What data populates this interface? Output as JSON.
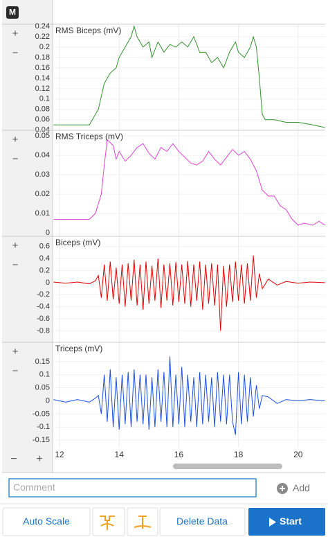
{
  "toolbar": {
    "marker": "M"
  },
  "controls": {
    "zoom_in": "+",
    "zoom_out": "−"
  },
  "chart_data": [
    {
      "type": "line",
      "title": "RMS Biceps (mV)",
      "color": "#2f8f2a",
      "x": [
        11.8,
        12.4,
        13.0,
        13.3,
        13.5,
        13.7,
        13.9,
        14.0,
        14.2,
        14.4,
        14.5,
        14.6,
        14.8,
        15.0,
        15.1,
        15.3,
        15.5,
        15.7,
        15.9,
        16.1,
        16.3,
        16.5,
        16.7,
        16.9,
        17.1,
        17.3,
        17.5,
        17.7,
        17.9,
        18.0,
        18.2,
        18.4,
        18.5,
        18.6,
        18.7,
        18.8,
        18.9,
        19.2,
        19.6,
        20.0,
        20.5,
        20.9
      ],
      "values": [
        0.05,
        0.05,
        0.05,
        0.08,
        0.13,
        0.15,
        0.16,
        0.18,
        0.2,
        0.22,
        0.24,
        0.22,
        0.2,
        0.21,
        0.18,
        0.21,
        0.19,
        0.205,
        0.2,
        0.21,
        0.2,
        0.22,
        0.19,
        0.19,
        0.17,
        0.18,
        0.16,
        0.19,
        0.21,
        0.19,
        0.18,
        0.2,
        0.22,
        0.2,
        0.14,
        0.07,
        0.06,
        0.06,
        0.055,
        0.055,
        0.05,
        0.045
      ],
      "xlim": [
        11.79,
        20.91
      ],
      "xticks": [
        12,
        14,
        16,
        18,
        20
      ],
      "ylim": [
        0.041,
        0.244
      ],
      "yticks": [
        0.24,
        0.22,
        0.2,
        0.18,
        0.16,
        0.14,
        0.12,
        0.1,
        0.08,
        0.06,
        0.04
      ],
      "grid": true
    },
    {
      "type": "line",
      "title": "RMS Triceps (mV)",
      "color": "#e040d2",
      "x": [
        11.8,
        13.0,
        13.2,
        13.4,
        13.5,
        13.6,
        13.8,
        13.9,
        14.0,
        14.2,
        14.4,
        14.6,
        14.8,
        15.0,
        15.2,
        15.4,
        15.6,
        15.8,
        16.0,
        16.2,
        16.4,
        16.6,
        16.8,
        17.0,
        17.2,
        17.4,
        17.6,
        17.8,
        18.0,
        18.2,
        18.4,
        18.6,
        18.8,
        19.0,
        19.2,
        19.4,
        19.6,
        19.8,
        20.0,
        20.2,
        20.5,
        20.7,
        20.9
      ],
      "values": [
        0.007,
        0.007,
        0.01,
        0.02,
        0.035,
        0.048,
        0.045,
        0.038,
        0.042,
        0.037,
        0.04,
        0.044,
        0.046,
        0.041,
        0.038,
        0.044,
        0.042,
        0.046,
        0.042,
        0.039,
        0.036,
        0.035,
        0.037,
        0.042,
        0.038,
        0.035,
        0.039,
        0.043,
        0.04,
        0.042,
        0.038,
        0.032,
        0.022,
        0.019,
        0.019,
        0.014,
        0.012,
        0.007,
        0.004,
        0.005,
        0.004,
        0.006,
        0.004
      ],
      "xlim": [
        11.79,
        20.91
      ],
      "xticks": [
        12,
        14,
        16,
        18,
        20
      ],
      "ylim": [
        -0.0014,
        0.0529
      ],
      "yticks": [
        0.05,
        0.04,
        0.03,
        0.02,
        0.01,
        0
      ],
      "grid": true
    },
    {
      "type": "line",
      "title": "Biceps (mV)",
      "color": "#e00000",
      "x": [
        11.8,
        12.2,
        12.6,
        13.0,
        13.2,
        13.3,
        13.4,
        13.5,
        13.6,
        13.7,
        13.8,
        13.9,
        14.0,
        14.1,
        14.2,
        14.3,
        14.4,
        14.5,
        14.6,
        14.7,
        14.8,
        14.9,
        15.0,
        15.1,
        15.2,
        15.3,
        15.4,
        15.5,
        15.6,
        15.7,
        15.8,
        15.9,
        16.0,
        16.1,
        16.2,
        16.3,
        16.4,
        16.5,
        16.6,
        16.7,
        16.8,
        16.9,
        17.0,
        17.1,
        17.2,
        17.3,
        17.4,
        17.5,
        17.6,
        17.7,
        17.8,
        17.9,
        18.0,
        18.1,
        18.2,
        18.3,
        18.4,
        18.5,
        18.6,
        18.7,
        18.8,
        19.0,
        19.3,
        19.6,
        20.0,
        20.4,
        20.9
      ],
      "values": [
        0.01,
        -0.01,
        0.01,
        -0.02,
        0.03,
        0.12,
        -0.25,
        0.3,
        -0.3,
        0.35,
        -0.28,
        0.25,
        -0.35,
        0.3,
        -0.4,
        0.32,
        -0.3,
        0.38,
        -0.38,
        0.3,
        -0.45,
        0.35,
        -0.35,
        0.28,
        -0.3,
        0.4,
        -0.42,
        0.3,
        -0.3,
        0.32,
        -0.38,
        0.34,
        -0.32,
        0.3,
        -0.35,
        0.36,
        -0.4,
        0.3,
        -0.3,
        0.35,
        -0.45,
        0.3,
        -0.35,
        0.32,
        -0.38,
        0.3,
        -0.8,
        0.28,
        -0.4,
        0.3,
        -0.32,
        0.35,
        -0.3,
        0.3,
        -0.35,
        0.32,
        -0.3,
        0.45,
        -0.25,
        0.15,
        -0.1,
        0.06,
        -0.04,
        0.02,
        -0.01,
        0.01,
        0
      ],
      "xlim": [
        11.79,
        20.91
      ],
      "xticks": [
        12,
        14,
        16,
        18,
        20
      ],
      "ylim": [
        -0.98,
        0.77
      ],
      "yticks": [
        0.6,
        0.4,
        0.2,
        0,
        -0.2,
        -0.4,
        -0.6,
        -0.8
      ],
      "grid": true
    },
    {
      "type": "line",
      "title": "Triceps (mV)",
      "color": "#1a4fe0",
      "x": [
        11.8,
        12.2,
        12.6,
        13.0,
        13.2,
        13.3,
        13.4,
        13.5,
        13.6,
        13.7,
        13.8,
        13.9,
        14.0,
        14.1,
        14.2,
        14.3,
        14.4,
        14.5,
        14.6,
        14.7,
        14.8,
        14.9,
        15.0,
        15.1,
        15.2,
        15.3,
        15.4,
        15.5,
        15.6,
        15.7,
        15.8,
        15.9,
        16.0,
        16.1,
        16.2,
        16.3,
        16.4,
        16.5,
        16.6,
        16.7,
        16.8,
        16.9,
        17.0,
        17.1,
        17.2,
        17.3,
        17.4,
        17.5,
        17.6,
        17.7,
        17.8,
        17.9,
        18.0,
        18.1,
        18.2,
        18.3,
        18.4,
        18.5,
        18.6,
        18.7,
        18.8,
        19.0,
        19.3,
        19.6,
        20.0,
        20.4,
        20.9
      ],
      "values": [
        0.005,
        -0.005,
        0.005,
        -0.005,
        0.01,
        0.02,
        -0.05,
        0.1,
        -0.08,
        0.12,
        -0.1,
        0.09,
        -0.11,
        0.1,
        -0.09,
        0.11,
        -0.1,
        0.12,
        -0.08,
        0.1,
        -0.09,
        0.1,
        -0.11,
        0.09,
        -0.1,
        0.12,
        -0.08,
        0.11,
        -0.1,
        0.17,
        -0.1,
        0.1,
        -0.09,
        0.13,
        -0.1,
        0.1,
        -0.08,
        0.09,
        -0.1,
        0.11,
        -0.09,
        0.1,
        -0.08,
        0.09,
        -0.1,
        0.11,
        -0.08,
        0.1,
        -0.09,
        0.1,
        -0.08,
        -0.13,
        0.11,
        -0.09,
        0.1,
        -0.08,
        0.09,
        -0.06,
        0.06,
        -0.03,
        0.02,
        0.015,
        -0.01,
        0.005,
        0,
        0.005,
        0
      ],
      "xlim": [
        11.79,
        20.91
      ],
      "xticks": [
        12,
        14,
        16,
        18,
        20
      ],
      "ylim": [
        -0.179,
        0.224
      ],
      "yticks": [
        0.15,
        0.1,
        0.05,
        0,
        -0.05,
        -0.1,
        -0.15
      ],
      "grid": true
    }
  ],
  "comment": {
    "placeholder": "Comment",
    "add": "Add"
  },
  "buttons": {
    "auto_scale": "Auto Scale",
    "delete_data": "Delete Data",
    "start": "Start"
  }
}
